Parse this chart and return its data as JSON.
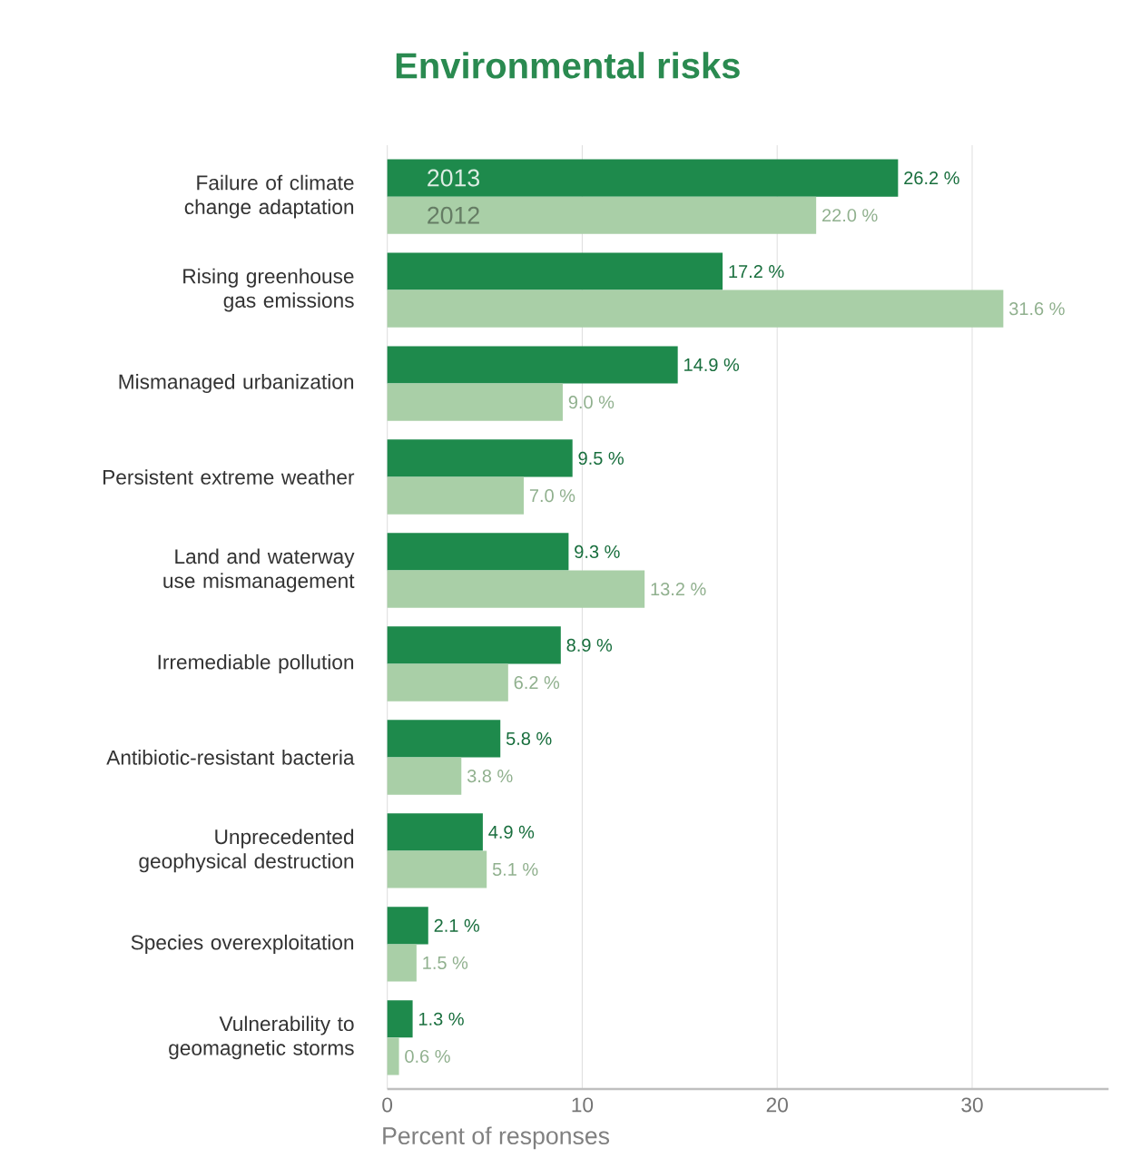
{
  "chart_data": {
    "type": "bar",
    "orientation": "horizontal",
    "title": "Environmental risks",
    "xlabel": "Percent of responses",
    "categories": [
      "Failure of climate change adaptation",
      "Rising greenhouse gas emissions",
      "Mismanaged urbanization",
      "Persistent extreme weather",
      "Land and waterway use mismanagement",
      "Irremediable pollution",
      "Antibiotic-resistant bacteria",
      "Unprecedented geophysical destruction",
      "Species overexploitation",
      "Vulnerability to geomagnetic storms"
    ],
    "series": [
      {
        "name": "2013",
        "color": "#1e8a4c",
        "values": [
          26.2,
          17.2,
          14.9,
          9.5,
          9.3,
          8.9,
          5.8,
          4.9,
          2.1,
          1.3
        ],
        "value_labels": [
          "26.2 %",
          "17.2 %",
          "14.9 %",
          "9.5 %",
          "9.3 %",
          "8.9 %",
          "5.8 %",
          "4.9 %",
          "2.1 %",
          "1.3 %"
        ]
      },
      {
        "name": "2012",
        "color": "#a9cfa7",
        "values": [
          22.0,
          31.6,
          9.0,
          7.0,
          13.2,
          6.2,
          3.8,
          5.1,
          1.5,
          0.6
        ],
        "value_labels": [
          "22.0 %",
          "31.6 %",
          "9.0 %",
          "7.0 %",
          "13.2 %",
          "6.2 %",
          "3.8 %",
          "5.1 %",
          "1.5 %",
          "0.6 %"
        ]
      }
    ],
    "xlim": [
      0,
      37
    ],
    "xticks": [
      0,
      10,
      20,
      30
    ],
    "grid": "x"
  }
}
